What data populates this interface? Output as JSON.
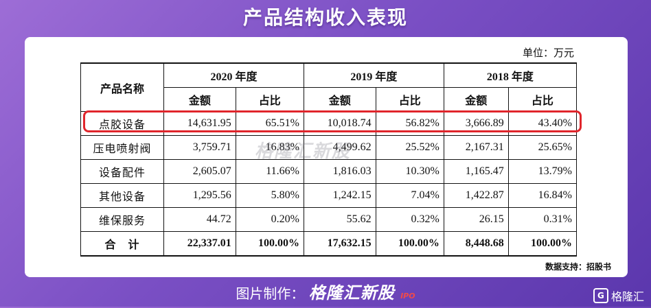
{
  "title": "产品结构收入表现",
  "unit": "单位：万元",
  "table": {
    "name_header": "产品名称",
    "years": [
      "2020 年度",
      "2019 年度",
      "2018 年度"
    ],
    "sub_headers": [
      "金额",
      "占比"
    ],
    "rows": [
      {
        "name": "点胶设备",
        "cells": [
          "14,631.95",
          "65.51%",
          "10,018.74",
          "56.82%",
          "3,666.89",
          "43.40%"
        ]
      },
      {
        "name": "压电喷射阀",
        "cells": [
          "3,759.71",
          "16.83%",
          "4,499.62",
          "25.52%",
          "2,167.31",
          "25.65%"
        ]
      },
      {
        "name": "设备配件",
        "cells": [
          "2,605.07",
          "11.66%",
          "1,816.03",
          "10.30%",
          "1,165.47",
          "13.79%"
        ]
      },
      {
        "name": "其他设备",
        "cells": [
          "1,295.56",
          "5.80%",
          "1,242.15",
          "7.04%",
          "1,422.87",
          "16.84%"
        ]
      },
      {
        "name": "维保服务",
        "cells": [
          "44.72",
          "0.20%",
          "55.62",
          "0.32%",
          "26.15",
          "0.31%"
        ]
      }
    ],
    "total": {
      "name": "合　计",
      "cells": [
        "22,337.01",
        "100.00%",
        "17,632.15",
        "100.00%",
        "8,448.68",
        "100.00%"
      ]
    }
  },
  "highlight_color": "#e0252b",
  "watermark": "格隆汇新股",
  "source": "数据支持：招股书",
  "footer": {
    "label": "图片制作：",
    "brand": "格隆汇新股",
    "ipo": "IPO"
  },
  "corner_logo": {
    "letter": "G",
    "text": "格隆汇"
  }
}
